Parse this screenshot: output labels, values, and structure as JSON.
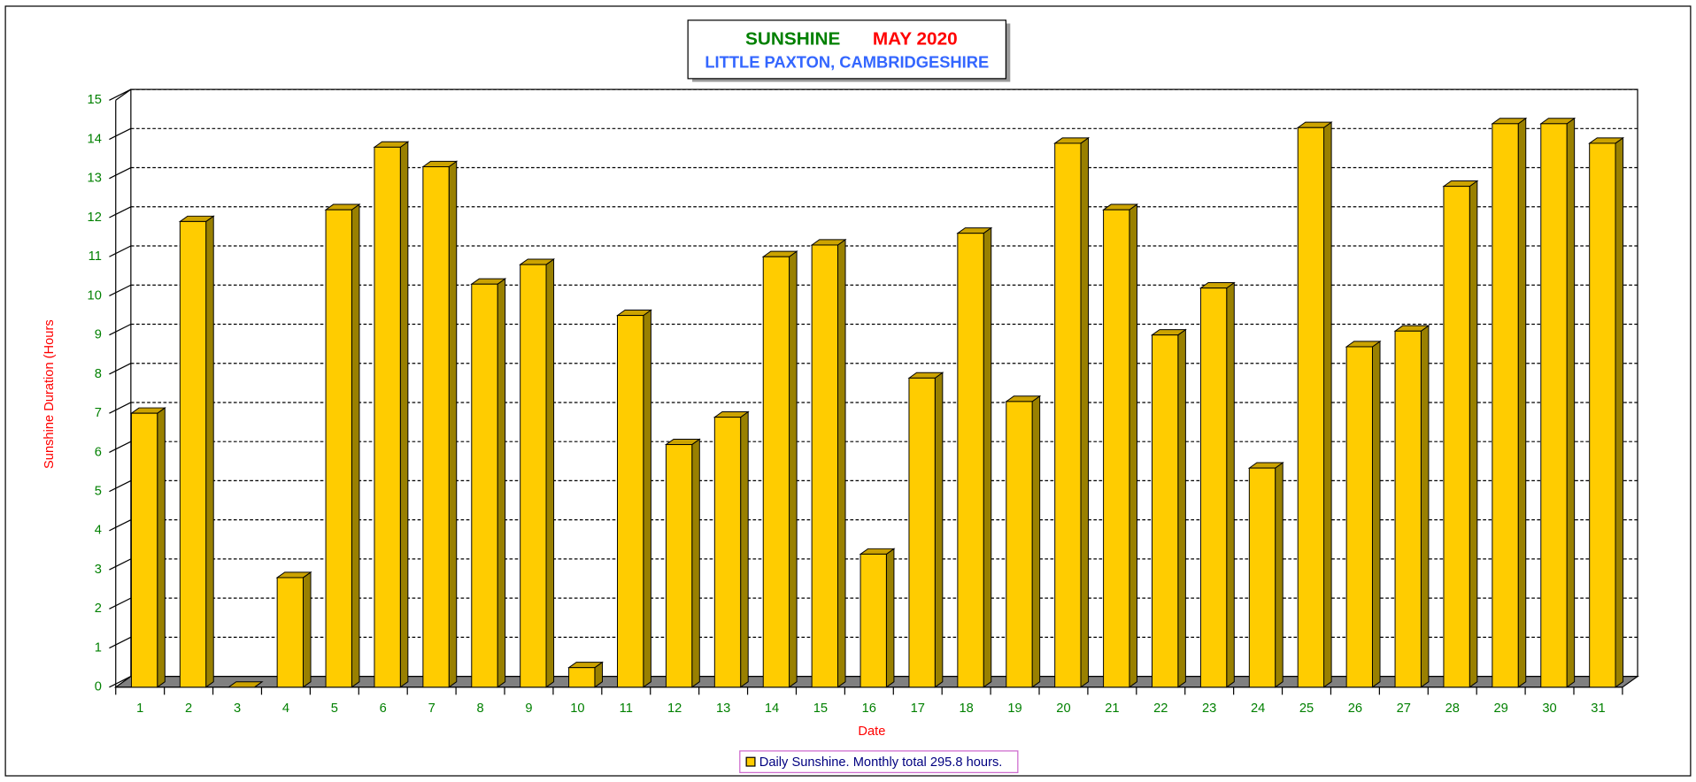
{
  "chart_data": {
    "type": "bar",
    "title": "SUNSHINE",
    "title_month": "MAY 2020",
    "subtitle": "LITTLE PAXTON, CAMBRIDGESHIRE",
    "x_label": "Date",
    "y_label": "Sunshine Duration (Hours",
    "legend": "Daily Sunshine. Monthly total 295.8 hours.",
    "color": "#ffcc00",
    "categories": [
      "1",
      "2",
      "3",
      "4",
      "5",
      "6",
      "7",
      "8",
      "9",
      "10",
      "11",
      "12",
      "13",
      "14",
      "15",
      "16",
      "17",
      "18",
      "19",
      "20",
      "21",
      "22",
      "23",
      "24",
      "25",
      "26",
      "27",
      "28",
      "29",
      "30",
      "31"
    ],
    "values": [
      7.0,
      11.9,
      0,
      2.8,
      12.2,
      13.8,
      13.3,
      10.3,
      10.8,
      0.5,
      9.5,
      6.2,
      6.9,
      11.0,
      11.3,
      3.4,
      7.9,
      11.6,
      7.3,
      13.9,
      12.2,
      9.0,
      10.2,
      5.6,
      14.3,
      8.7,
      9.1,
      12.8,
      14.4,
      14.4,
      13.9
    ],
    "ylim": [
      0,
      15
    ],
    "yticks": [
      0,
      1,
      2,
      3,
      4,
      5,
      6,
      7,
      8,
      9,
      10,
      11,
      12,
      13,
      14,
      15
    ],
    "grid": true
  }
}
